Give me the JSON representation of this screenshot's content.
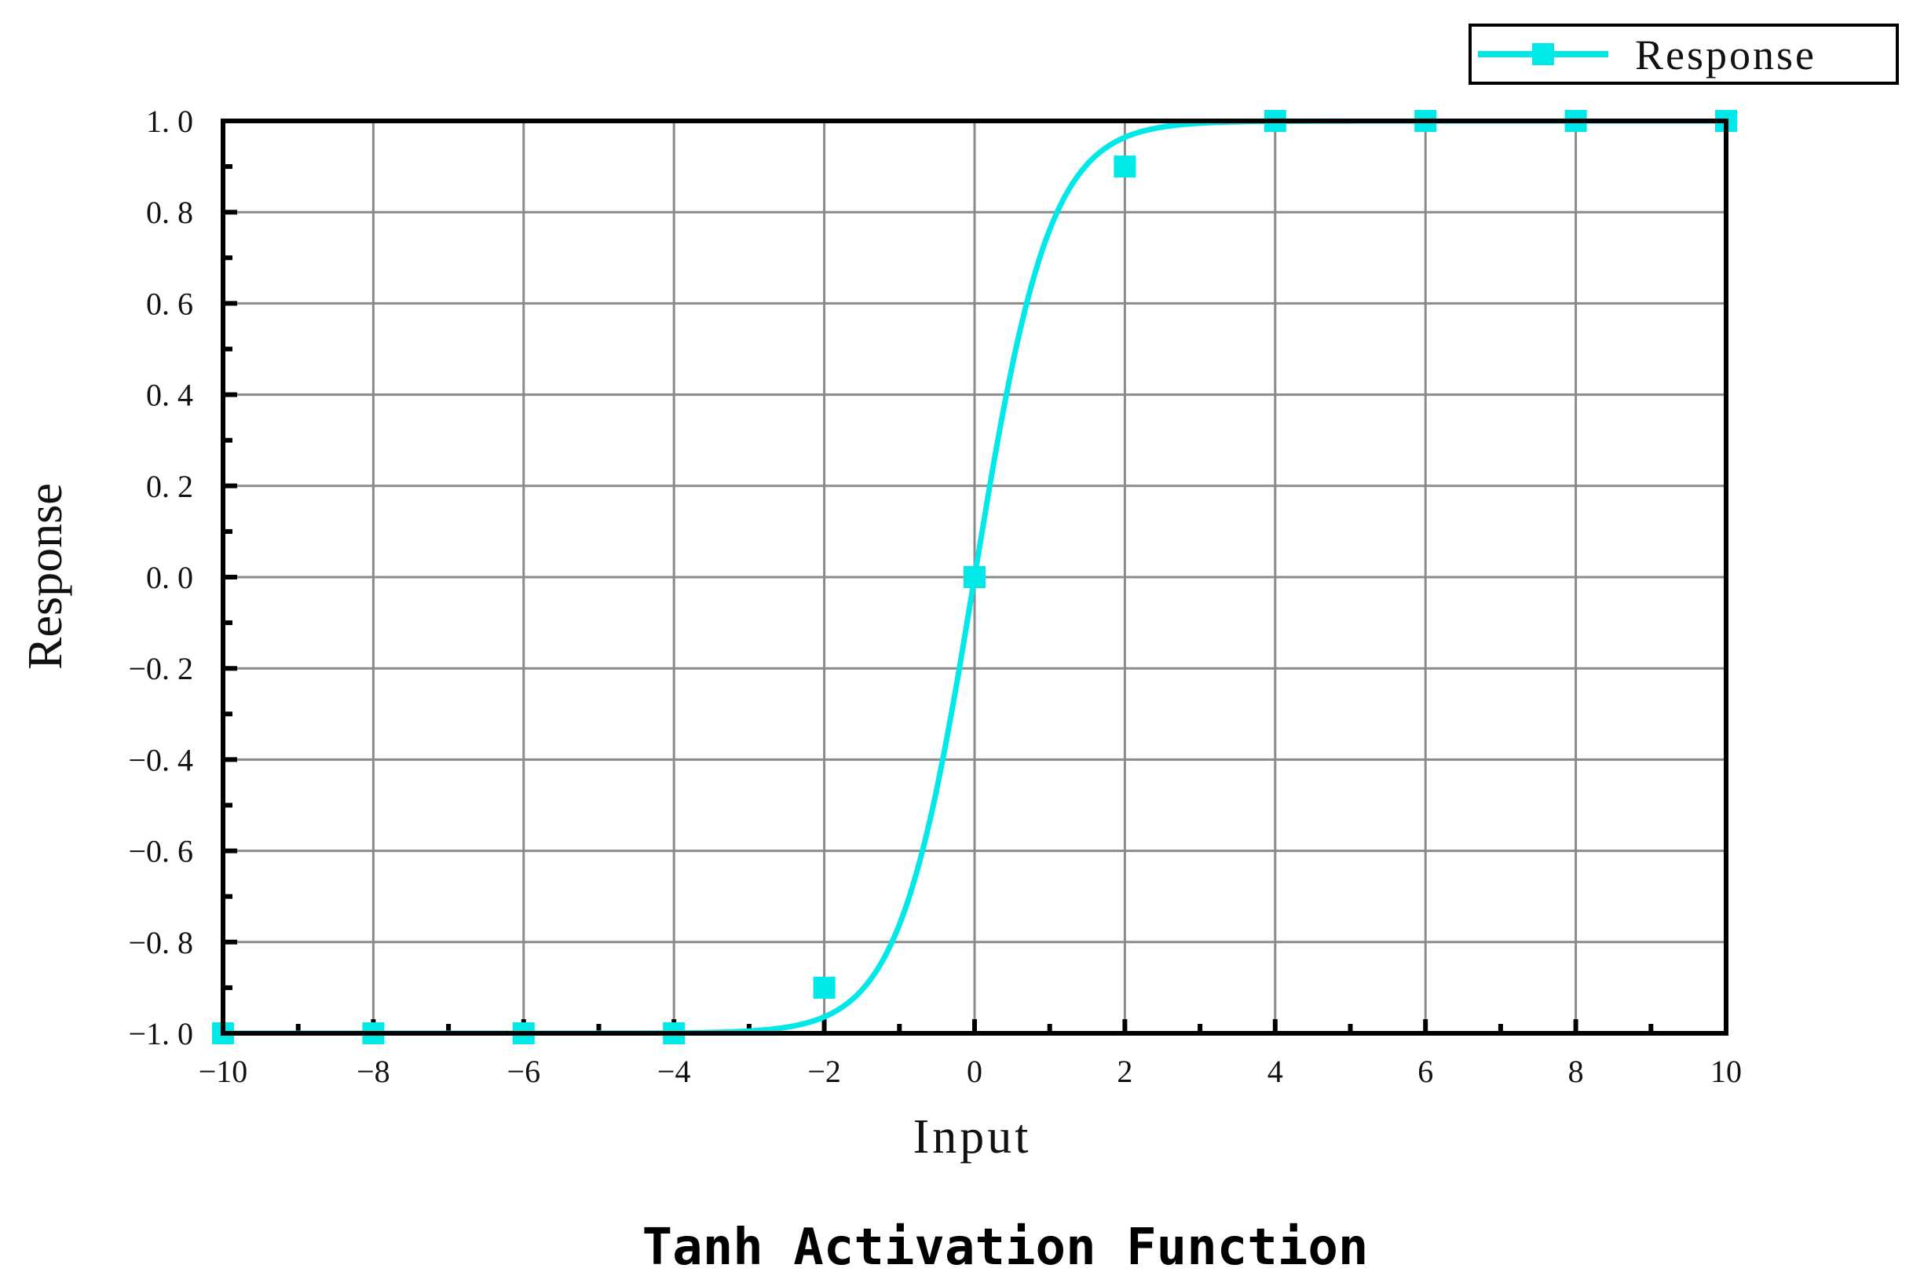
{
  "chart_data": {
    "type": "line",
    "title": "Tanh Activation Function",
    "xlabel": "Input",
    "ylabel": "Response",
    "xlim": [
      -10,
      10
    ],
    "ylim": [
      -1.0,
      1.0
    ],
    "x_ticks": [
      -10,
      -8,
      -6,
      -4,
      -2,
      0,
      2,
      4,
      6,
      8,
      10
    ],
    "x_tick_labels": [
      "−10",
      "−8",
      "−6",
      "−4",
      "−2",
      "0",
      "2",
      "4",
      "6",
      "8",
      "10"
    ],
    "y_ticks": [
      1.0,
      0.8,
      0.6,
      0.4,
      0.2,
      0.0,
      -0.2,
      -0.4,
      -0.6,
      -0.8,
      -1.0
    ],
    "y_tick_labels": [
      "1. 0",
      "0. 8",
      "0. 6",
      "0. 4",
      "0. 2",
      "0. 0",
      "−0. 2",
      "−0. 4",
      "−0. 6",
      "−0. 8",
      "−1. 0"
    ],
    "grid": true,
    "legend": {
      "placement": "top-right",
      "entries": [
        "Response"
      ]
    },
    "series": [
      {
        "name": "Response",
        "color": "#00e8e8",
        "marker": "square",
        "function": "tanh",
        "x": [
          -10,
          -8,
          -6,
          -4,
          -2,
          0,
          2,
          4,
          6,
          8,
          10
        ],
        "values": [
          -1.0,
          -1.0,
          -1.0,
          -1.0,
          -0.9,
          0.0,
          0.9,
          1.0,
          1.0,
          1.0,
          1.0
        ]
      }
    ]
  }
}
